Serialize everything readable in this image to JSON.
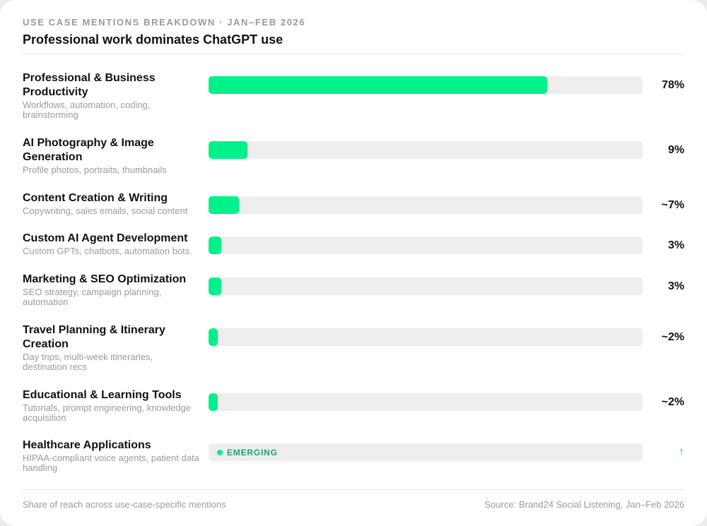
{
  "header": {
    "kicker": "USE CASE MENTIONS BREAKDOWN · JAN–FEB 2026",
    "title": "Professional work dominates ChatGPT use"
  },
  "chart_data": {
    "type": "bar",
    "orientation": "horizontal",
    "unit": "%",
    "xlim": [
      0,
      100
    ],
    "accent_color": "#00f08a",
    "track_color": "#eeeeee",
    "rows": [
      {
        "label": "Professional & Business Productivity",
        "sub": "Workflows, automation, coding, brainstorming",
        "value": 78,
        "display": "78%"
      },
      {
        "label": "AI Photography & Image Generation",
        "sub": "Profile photos, portraits, thumbnails",
        "value": 9,
        "display": "9%"
      },
      {
        "label": "Content Creation & Writing",
        "sub": "Copywriting, sales emails, social content",
        "value": 7,
        "display": "~7%"
      },
      {
        "label": "Custom AI Agent Development",
        "sub": "Custom GPTs, chatbots, automation bots",
        "value": 3,
        "display": "3%"
      },
      {
        "label": "Marketing & SEO Optimization",
        "sub": "SEO strategy, campaign planning, automation",
        "value": 3,
        "display": "3%"
      },
      {
        "label": "Travel Planning & Itinerary Creation",
        "sub": "Day trips, multi-week itineraries, destination recs",
        "value": 2,
        "display": "~2%"
      },
      {
        "label": "Educational & Learning Tools",
        "sub": "Tutorials, prompt engineering, knowledge acquisition",
        "value": 2,
        "display": "~2%"
      },
      {
        "label": "Healthcare Applications",
        "sub": "HIPAA-compliant voice agents, patient data handling",
        "value": null,
        "badge": "EMERGING",
        "display": "↑"
      }
    ]
  },
  "footer": {
    "note": "Share of reach across use-case-specific mentions",
    "source": "Source: Brand24 Social Listening, Jan–Feb 2026"
  }
}
